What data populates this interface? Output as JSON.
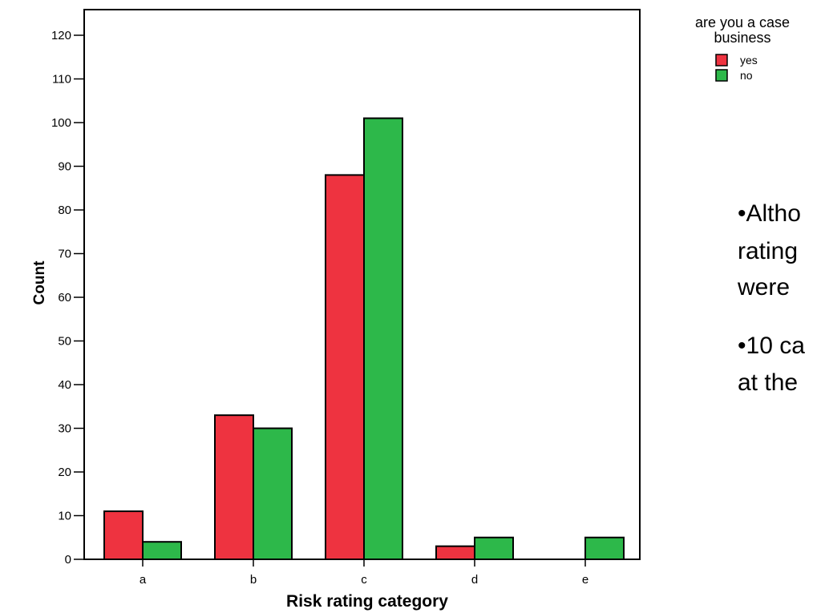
{
  "chart_data": {
    "type": "bar",
    "categories": [
      "a",
      "b",
      "c",
      "d",
      "e"
    ],
    "series": [
      {
        "name": "yes",
        "color": "#ee3340",
        "values": [
          11,
          33,
          88,
          3,
          0
        ]
      },
      {
        "name": "no",
        "color": "#2db84a",
        "values": [
          4,
          30,
          101,
          5,
          5
        ]
      }
    ],
    "xlabel": "Risk rating category",
    "ylabel": "Count",
    "ylim": [
      0,
      120
    ],
    "yticks": [
      0,
      10,
      20,
      30,
      40,
      50,
      60,
      70,
      80,
      90,
      100,
      110,
      120
    ],
    "grid": false,
    "legend": {
      "title_line1": "are you a case",
      "title_line2": "business",
      "placement": "top-right"
    }
  },
  "slide_text": {
    "bullet1_line1": "•Altho",
    "bullet1_line2": "rating",
    "bullet1_line3": "were",
    "bullet2_line1": "•10 ca",
    "bullet2_line2": "at the"
  }
}
